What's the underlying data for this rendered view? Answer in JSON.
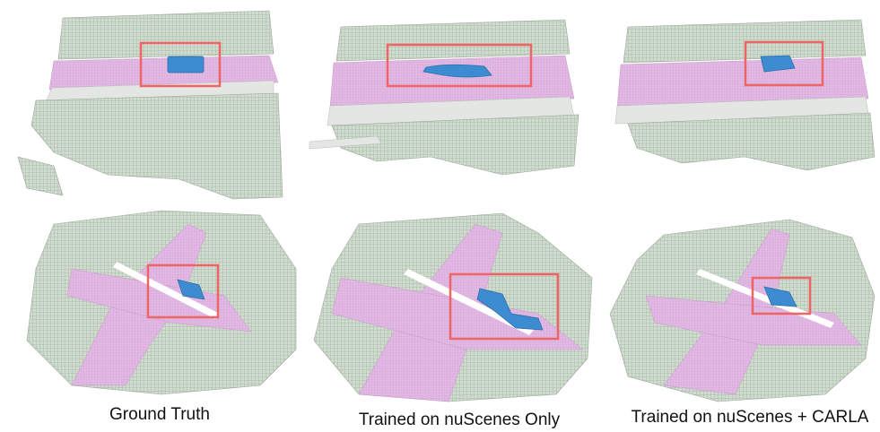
{
  "captions": [
    "Ground Truth",
    "Trained on nuScenes Only",
    "Trained on nuScenes + CARLA"
  ]
}
